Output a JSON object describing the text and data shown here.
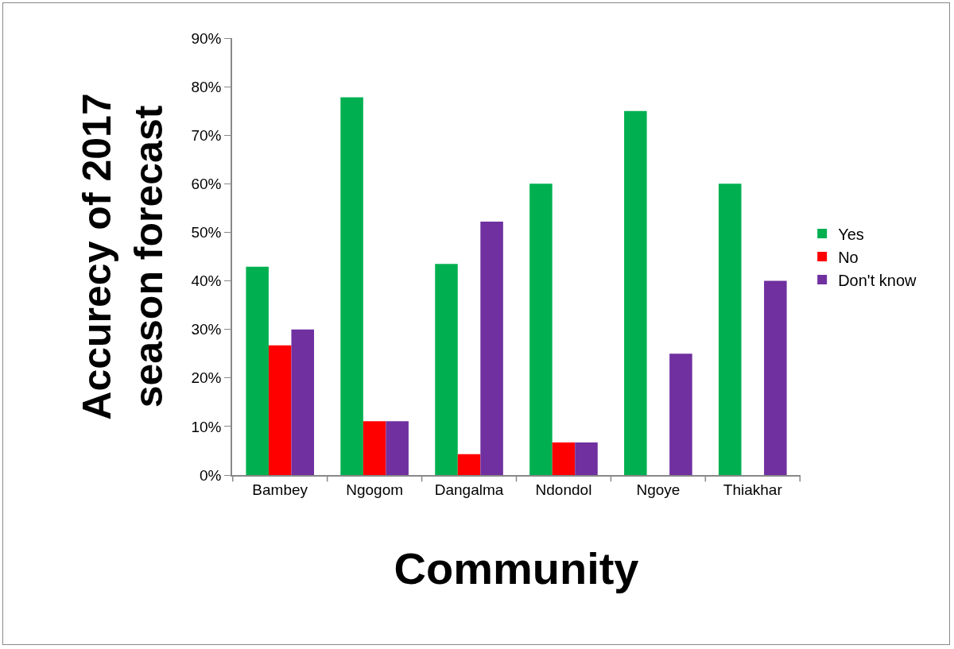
{
  "chart_data": {
    "type": "bar",
    "xlabel": "Community",
    "ylabel": "Accurecy of 2017 season forecast",
    "categories": [
      "Bambey",
      "Ngogom",
      "Dangalma",
      "Ndondol",
      "Ngoye",
      "Thiakhar"
    ],
    "series": [
      {
        "name": "Yes",
        "color": "#00b050",
        "values": [
          42.9,
          77.8,
          43.5,
          60,
          75,
          60
        ]
      },
      {
        "name": "No",
        "color": "#ff0000",
        "values": [
          26.7,
          11.1,
          4.3,
          6.7,
          0,
          0
        ]
      },
      {
        "name": "Don't know",
        "color": "#7030a0",
        "values": [
          30,
          11.1,
          52.2,
          6.7,
          25,
          40
        ]
      }
    ],
    "ylim": [
      0,
      90
    ],
    "yticks": [
      {
        "value": 0,
        "label": "0%"
      },
      {
        "value": 10,
        "label": "10%"
      },
      {
        "value": 20,
        "label": "20%"
      },
      {
        "value": 30,
        "label": "30%"
      },
      {
        "value": 40,
        "label": "40%"
      },
      {
        "value": 50,
        "label": "50%"
      },
      {
        "value": 60,
        "label": "60%"
      },
      {
        "value": 70,
        "label": "70%"
      },
      {
        "value": 80,
        "label": "80%"
      },
      {
        "value": 90,
        "label": "90%"
      }
    ],
    "grid": false,
    "legend": "right"
  }
}
